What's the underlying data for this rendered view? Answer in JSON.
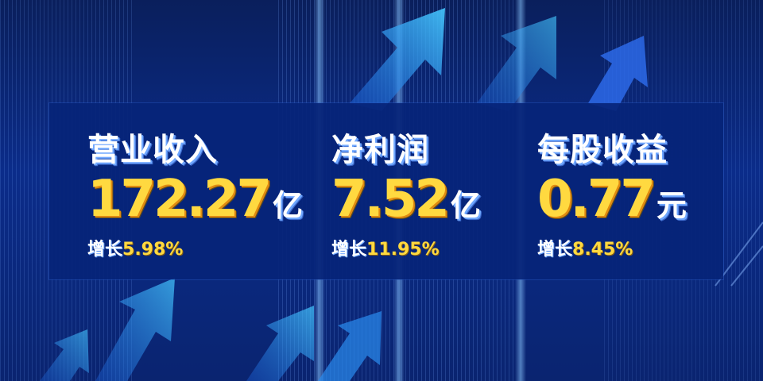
{
  "metrics": [
    {
      "title": "营业收入",
      "value": "172.27",
      "unit": "亿",
      "growth_label": "增长",
      "growth_value": "5.98%"
    },
    {
      "title": "净利润",
      "value": "7.52",
      "unit": "亿",
      "growth_label": "增长",
      "growth_value": "11.95%"
    },
    {
      "title": "每股收益",
      "value": "0.77",
      "unit": "元",
      "growth_label": "增长",
      "growth_value": "8.45%"
    }
  ],
  "colors": {
    "background": "#0b2c8a",
    "panel": "#06247a",
    "value": "#ffd940",
    "title": "#ffffff"
  },
  "decorations": [
    "upward-arrow-icon",
    "light-stripes"
  ]
}
